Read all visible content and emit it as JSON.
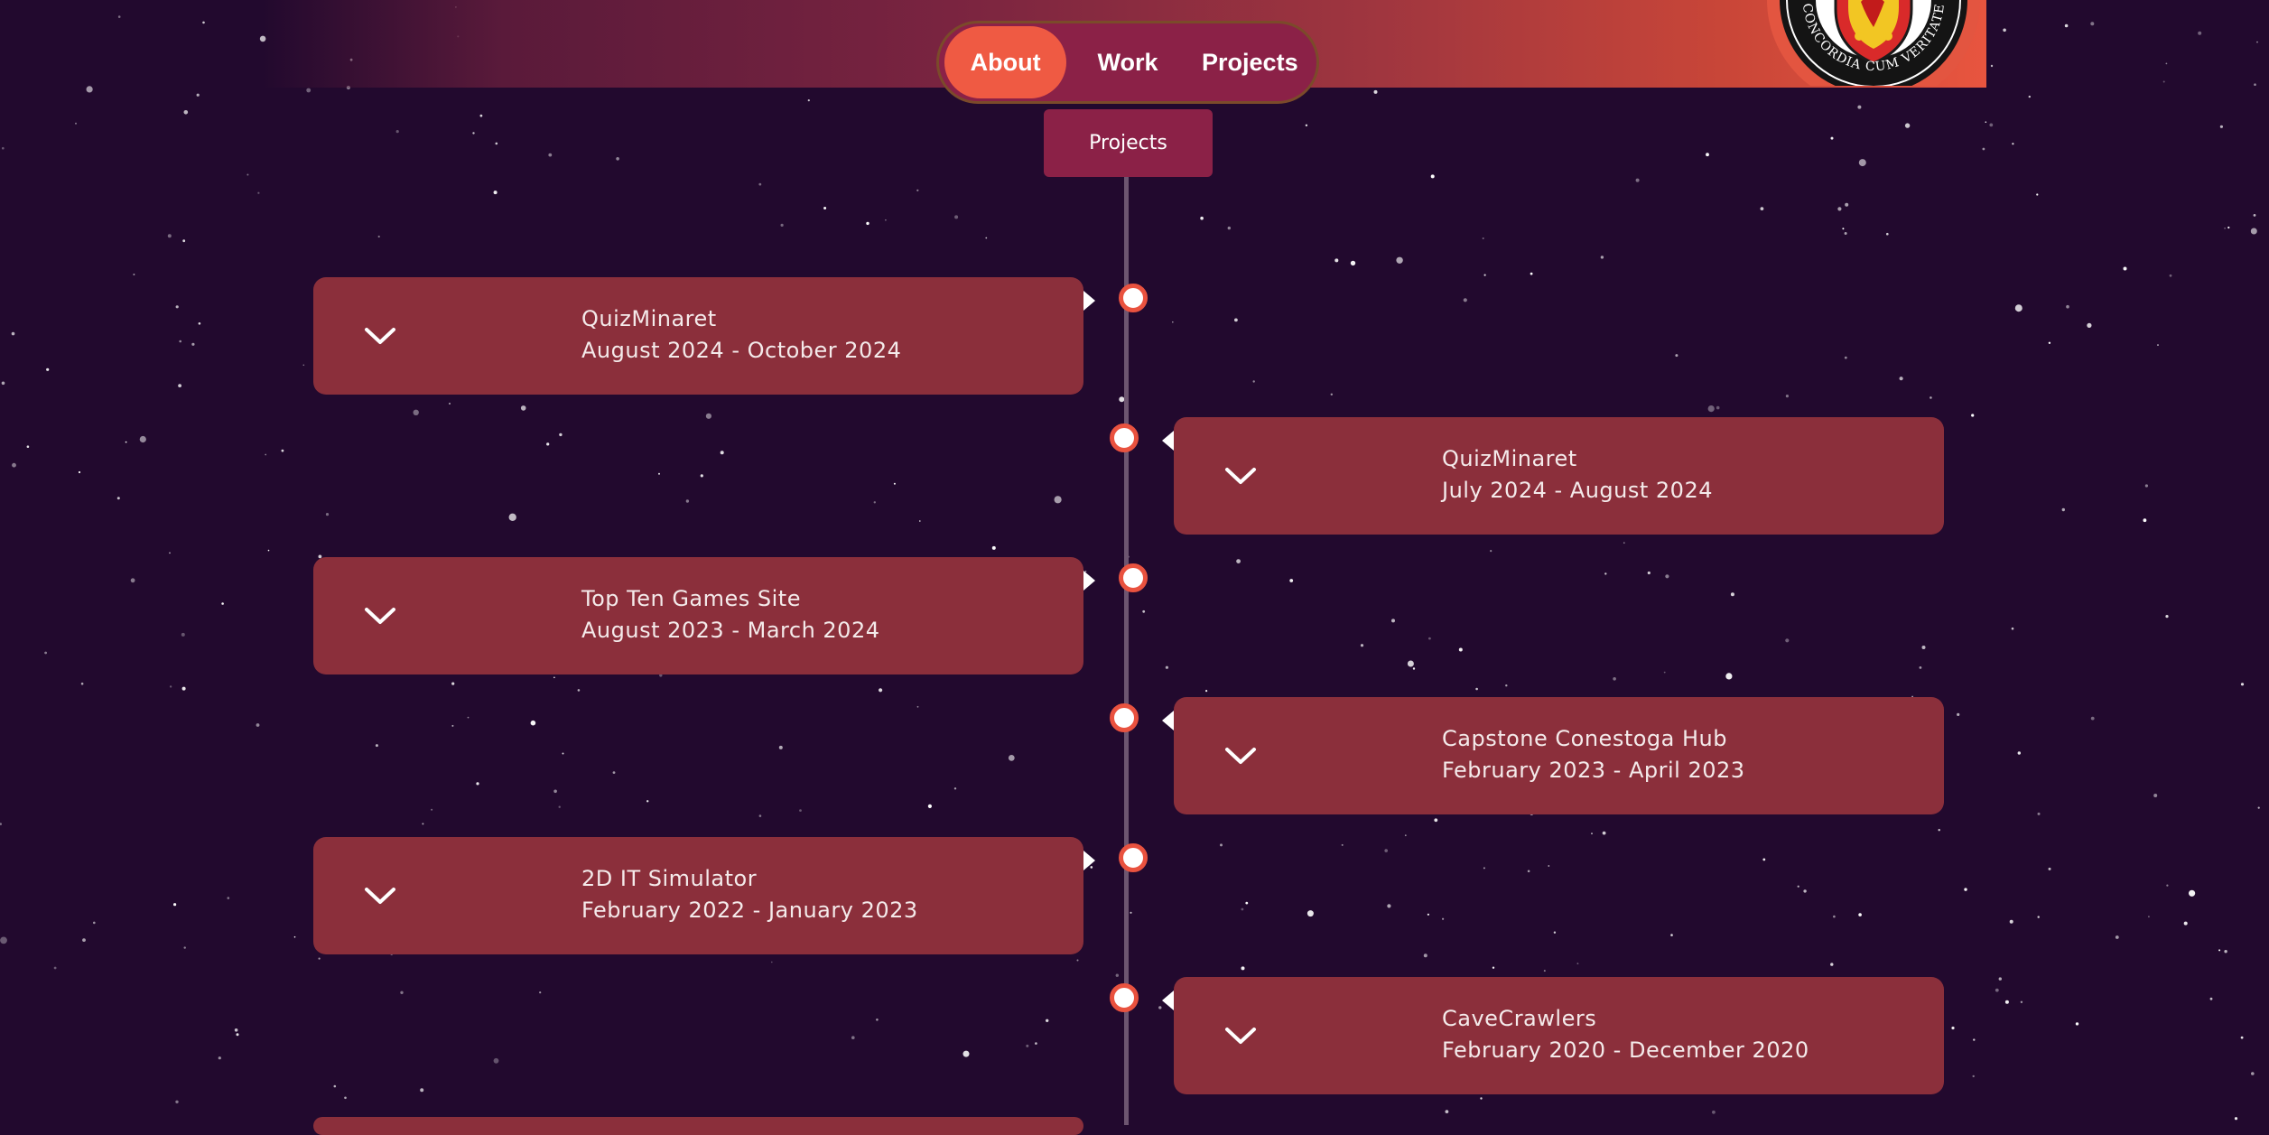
{
  "nav": {
    "items": [
      {
        "label": "About",
        "active": true
      },
      {
        "label": "Work",
        "active": false
      },
      {
        "label": "Projects",
        "active": false
      }
    ]
  },
  "crest": {
    "motto": "CONCORDIA CUM VERITATE"
  },
  "section_tab": {
    "label": "Projects"
  },
  "timeline": {
    "entries": [
      {
        "title": "QuizMinaret",
        "dates": "August 2024 - October 2024"
      },
      {
        "title": "QuizMinaret",
        "dates": "July 2024 - August 2024"
      },
      {
        "title": "Top Ten Games Site",
        "dates": "August 2023 - March 2024"
      },
      {
        "title": "Capstone Conestoga Hub",
        "dates": "February 2023 - April 2023"
      },
      {
        "title": "2D IT Simulator",
        "dates": "February 2022 - January 2023"
      },
      {
        "title": "CaveCrawlers",
        "dates": "February 2020 - December 2020"
      }
    ]
  },
  "colors": {
    "background": "#22092e",
    "accent": "#ef5a43",
    "card": "#8b2f3b",
    "nav_pill": "#8b2147"
  },
  "icons": {
    "toggle": "chevron-down-icon",
    "crest": "crest-icon"
  }
}
